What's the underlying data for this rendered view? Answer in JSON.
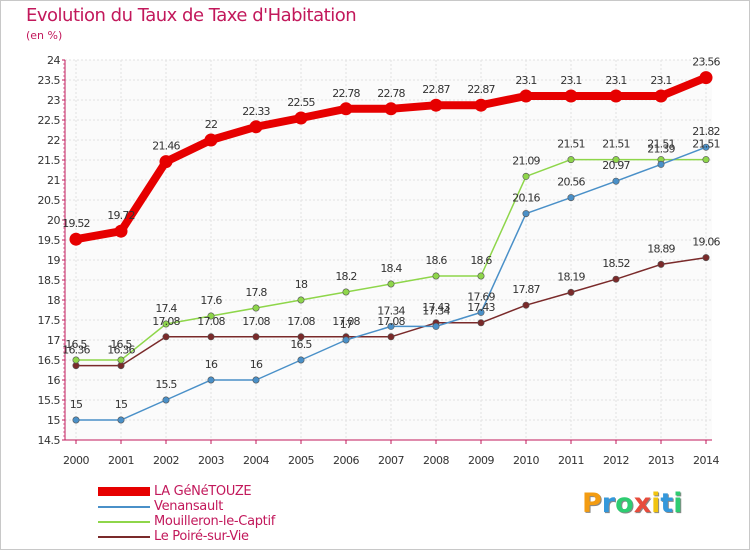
{
  "title": "Evolution du Taux de Taxe d'Habitation",
  "unit": "(en %)",
  "logo": {
    "text": "Proxiti",
    "letters": [
      "P",
      "r",
      "o",
      "x",
      "i",
      "t",
      "i"
    ],
    "colors": [
      "#f39c12",
      "#3498db",
      "#2ecc71",
      "#e74c3c",
      "#f1c40f",
      "#3498db",
      "#2ecc71"
    ]
  },
  "chart_data": {
    "type": "line",
    "title": "Evolution du Taux de Taxe d'Habitation",
    "ylabel": "(en %)",
    "x": [
      2000,
      2001,
      2002,
      2003,
      2004,
      2005,
      2006,
      2007,
      2008,
      2009,
      2010,
      2011,
      2012,
      2013,
      2014
    ],
    "ylim": [
      14.5,
      24
    ],
    "yticks": [
      14.5,
      15,
      15.5,
      16,
      16.5,
      17,
      17.5,
      18,
      18.5,
      19,
      19.5,
      20,
      20.5,
      21,
      21.5,
      22,
      22.5,
      23,
      23.5,
      24
    ],
    "grid": true,
    "legend_position": "bottom-left",
    "series": [
      {
        "name": "LA GéNéTOUZE",
        "color": "#e60000",
        "values": [
          19.52,
          19.72,
          21.46,
          22,
          22.33,
          22.55,
          22.78,
          22.78,
          22.87,
          22.87,
          23.1,
          23.1,
          23.1,
          23.1,
          23.56
        ],
        "labels": [
          "19.52",
          "19.72",
          "21.46",
          "22",
          "22.33",
          "22.55",
          "22.78",
          "22.78",
          "22.87",
          "22.87",
          "23.1",
          "23.1",
          "23.1",
          "23.1",
          "23.56"
        ]
      },
      {
        "name": "Venansault",
        "color": "#4a90c8",
        "values": [
          15,
          15,
          15.5,
          16,
          16,
          16.5,
          17,
          17.34,
          17.34,
          17.69,
          20.16,
          20.56,
          20.97,
          21.39,
          21.82
        ],
        "labels": [
          "15",
          "15",
          "15.5",
          "16",
          "16",
          "16.5",
          "17",
          "17.34",
          "17.34",
          "17.69",
          "20.16",
          "20.56",
          "20.97",
          "21.39",
          "21.82"
        ]
      },
      {
        "name": "Mouilleron-le-Captif",
        "color": "#8ed64a",
        "values": [
          16.5,
          16.5,
          17.4,
          17.6,
          17.8,
          18,
          18.2,
          18.4,
          18.6,
          18.6,
          21.09,
          21.51,
          21.51,
          21.51,
          21.51
        ],
        "labels": [
          "16.5",
          "16.5",
          "17.4",
          "17.6",
          "17.8",
          "18",
          "18.2",
          "18.4",
          "18.6",
          "18.6",
          "21.09",
          "21.51",
          "21.51",
          "21.51",
          "21.51"
        ]
      },
      {
        "name": "Le Poiré-sur-Vie",
        "color": "#7a2a2a",
        "values": [
          16.36,
          16.36,
          17.08,
          17.08,
          17.08,
          17.08,
          17.08,
          17.08,
          17.43,
          17.43,
          17.87,
          18.19,
          18.52,
          18.89,
          19.06
        ],
        "labels": [
          "16.36",
          "16.36",
          "17.08",
          "17.08",
          "17.08",
          "17.08",
          "17.08",
          "17.08",
          "17.43",
          "17.43",
          "17.87",
          "18.19",
          "18.52",
          "18.89",
          "19.06"
        ]
      }
    ]
  }
}
